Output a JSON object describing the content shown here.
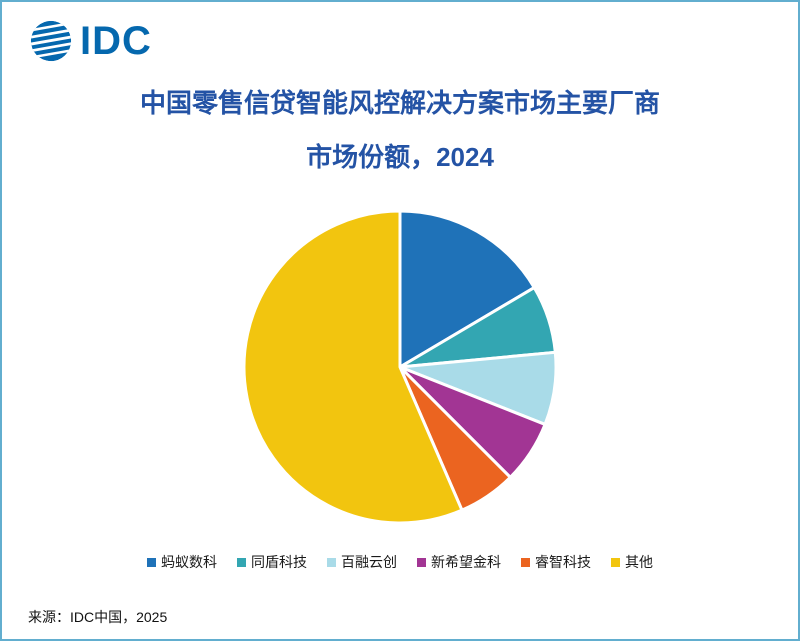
{
  "page": {
    "logo_text": "IDC",
    "source": "来源：IDC中国，2025"
  },
  "title": {
    "line1": "中国零售信贷智能风控解决方案市场主要厂商",
    "line2": "市场份额，2024"
  },
  "colors": {
    "title": "#2453a5",
    "logo": "#0568ae",
    "border": "#62aecf"
  },
  "chart_data": {
    "type": "pie",
    "title": "中国零售信贷智能风控解决方案市场主要厂商市场份额，2024",
    "categories": [
      "蚂蚁数科",
      "同盾科技",
      "百融云创",
      "新希望金科",
      "睿智科技",
      "其他"
    ],
    "values": [
      16.5,
      7,
      7.5,
      6.5,
      6,
      56.5
    ],
    "colors": [
      "#1f72b8",
      "#33a6b2",
      "#a9dbe8",
      "#a23594",
      "#eb6420",
      "#f2c50f"
    ],
    "start_angle_deg": 0,
    "units": "percent",
    "legend_position": "bottom",
    "data_labels": false
  }
}
